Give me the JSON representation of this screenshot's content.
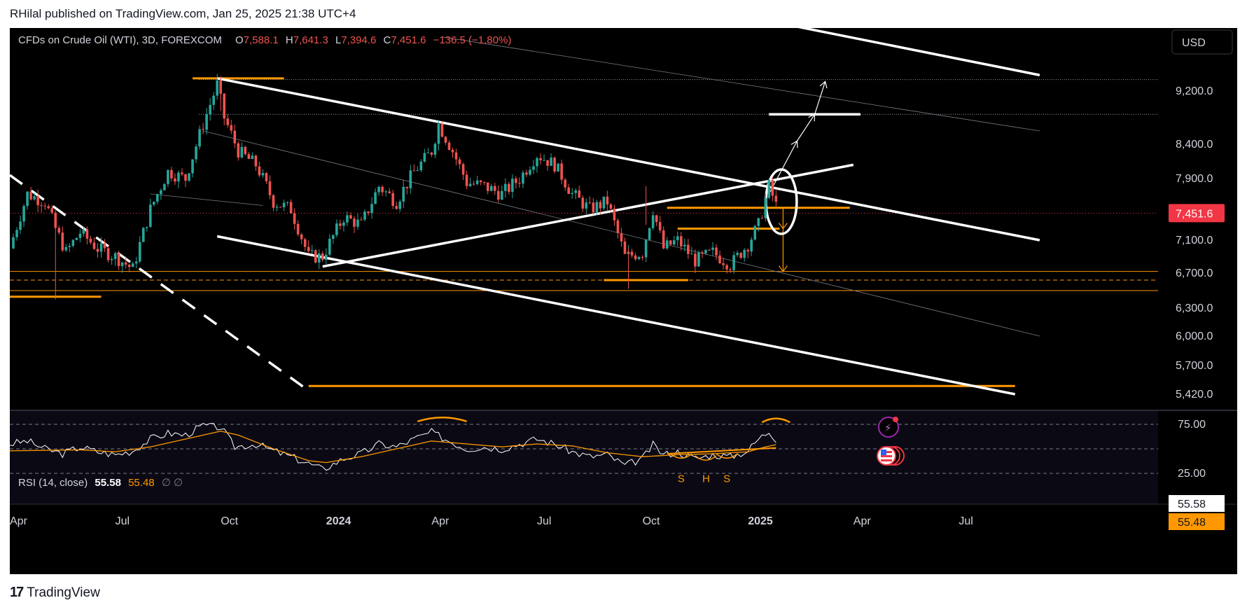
{
  "header": {
    "published": "RHilal published on TradingView.com, Jan 25, 2025 21:38 UTC+4"
  },
  "footer": {
    "brand": "TradingView",
    "logo": "TV-logo-icon"
  },
  "colors": {
    "bg": "#000000",
    "up": "#26a69a",
    "down": "#ef5350",
    "orange": "#ff9800",
    "white": "#ffffff",
    "axis": "#d1d4dc",
    "price_tag": "#f23645",
    "rsi_ma": "#ff9800"
  },
  "chart_data": {
    "type": "candlestick",
    "title": "CFDs on Crude Oil (WTI), 3D, FOREXCOM",
    "ohlc": {
      "o_label": "O",
      "o": "7,588.1",
      "h_label": "H",
      "h": "7,641.3",
      "l_label": "L",
      "l": "7,394.6",
      "c_label": "C",
      "c": "7,451.6",
      "change": "−136.5 (−1.80%)"
    },
    "currency": "USD",
    "last_price": "7,451.6",
    "y_ticks": [
      {
        "value": 9200,
        "label": "9,200.0"
      },
      {
        "value": 8400,
        "label": "8,400.0"
      },
      {
        "value": 7900,
        "label": "7,900.0"
      },
      {
        "value": 7100,
        "label": "7,100.0"
      },
      {
        "value": 6700,
        "label": "6,700.0"
      },
      {
        "value": 6300,
        "label": "6,300.0"
      },
      {
        "value": 6000,
        "label": "6,000.0"
      },
      {
        "value": 5700,
        "label": "5,700.0"
      },
      {
        "value": 5420,
        "label": "5,420.0"
      }
    ],
    "x_ticks": [
      {
        "month": 0,
        "label": "Apr",
        "bold": false
      },
      {
        "month": 3,
        "label": "Jul",
        "bold": false
      },
      {
        "month": 6,
        "label": "Oct",
        "bold": false
      },
      {
        "month": 9,
        "label": "2024",
        "bold": true
      },
      {
        "month": 12,
        "label": "Apr",
        "bold": false
      },
      {
        "month": 15,
        "label": "Jul",
        "bold": false
      },
      {
        "month": 18,
        "label": "Oct",
        "bold": false
      },
      {
        "month": 21,
        "label": "2025",
        "bold": true
      },
      {
        "month": 24,
        "label": "Apr",
        "bold": false
      },
      {
        "month": 27,
        "label": "Jul",
        "bold": false
      }
    ],
    "price_path": [
      {
        "m": 0.0,
        "p": 7000
      },
      {
        "m": 0.5,
        "p": 7700
      },
      {
        "m": 1.0,
        "p": 7600
      },
      {
        "m": 1.3,
        "p": 7250
      },
      {
        "m": 1.6,
        "p": 6950
      },
      {
        "m": 2.0,
        "p": 7200
      },
      {
        "m": 2.5,
        "p": 7000
      },
      {
        "m": 3.0,
        "p": 6900
      },
      {
        "m": 3.5,
        "p": 6750
      },
      {
        "m": 4.0,
        "p": 7500
      },
      {
        "m": 4.5,
        "p": 8000
      },
      {
        "m": 5.0,
        "p": 7900
      },
      {
        "m": 5.5,
        "p": 8700
      },
      {
        "m": 5.9,
        "p": 9300
      },
      {
        "m": 6.1,
        "p": 8800
      },
      {
        "m": 6.5,
        "p": 8300
      },
      {
        "m": 7.0,
        "p": 8100
      },
      {
        "m": 7.5,
        "p": 7600
      },
      {
        "m": 8.0,
        "p": 7500
      },
      {
        "m": 8.5,
        "p": 6900
      },
      {
        "m": 8.9,
        "p": 6900
      },
      {
        "m": 9.5,
        "p": 7400
      },
      {
        "m": 10.0,
        "p": 7300
      },
      {
        "m": 10.5,
        "p": 7800
      },
      {
        "m": 11.0,
        "p": 7600
      },
      {
        "m": 11.5,
        "p": 8000
      },
      {
        "m": 12.0,
        "p": 8300
      },
      {
        "m": 12.2,
        "p": 8700
      },
      {
        "m": 12.6,
        "p": 8300
      },
      {
        "m": 13.0,
        "p": 7850
      },
      {
        "m": 13.5,
        "p": 7800
      },
      {
        "m": 14.0,
        "p": 7700
      },
      {
        "m": 14.5,
        "p": 7900
      },
      {
        "m": 15.0,
        "p": 8250
      },
      {
        "m": 15.5,
        "p": 8100
      },
      {
        "m": 16.0,
        "p": 7700
      },
      {
        "m": 16.5,
        "p": 7500
      },
      {
        "m": 17.0,
        "p": 7600
      },
      {
        "m": 17.5,
        "p": 6900
      },
      {
        "m": 18.0,
        "p": 6950
      },
      {
        "m": 18.3,
        "p": 7500
      },
      {
        "m": 18.6,
        "p": 7000
      },
      {
        "m": 19.0,
        "p": 7100
      },
      {
        "m": 19.5,
        "p": 6850
      },
      {
        "m": 20.0,
        "p": 6950
      },
      {
        "m": 20.5,
        "p": 6800
      },
      {
        "m": 21.0,
        "p": 7050
      },
      {
        "m": 21.3,
        "p": 7300
      },
      {
        "m": 21.6,
        "p": 7800
      },
      {
        "m": 21.8,
        "p": 7550
      },
      {
        "m": 21.9,
        "p": 7450
      }
    ],
    "rsi": {
      "label": "RSI (14, close)",
      "value": "55.58",
      "ma_value": "55.48",
      "extra": "∅ ∅",
      "levels": [
        75,
        50,
        25
      ],
      "level_labels": [
        "75.00",
        "25.00"
      ],
      "pattern_labels": [
        "S",
        "H",
        "S"
      ],
      "path": [
        {
          "m": 0.0,
          "v": 55
        },
        {
          "m": 0.5,
          "v": 58
        },
        {
          "m": 1.0,
          "v": 50
        },
        {
          "m": 1.5,
          "v": 45
        },
        {
          "m": 2.0,
          "v": 52
        },
        {
          "m": 2.5,
          "v": 47
        },
        {
          "m": 3.0,
          "v": 44
        },
        {
          "m": 3.5,
          "v": 48
        },
        {
          "m": 4.0,
          "v": 60
        },
        {
          "m": 4.5,
          "v": 66
        },
        {
          "m": 5.0,
          "v": 64
        },
        {
          "m": 5.5,
          "v": 74
        },
        {
          "m": 6.0,
          "v": 72
        },
        {
          "m": 6.4,
          "v": 52
        },
        {
          "m": 7.0,
          "v": 55
        },
        {
          "m": 7.5,
          "v": 48
        },
        {
          "m": 8.0,
          "v": 42
        },
        {
          "m": 8.5,
          "v": 35
        },
        {
          "m": 8.9,
          "v": 29
        },
        {
          "m": 9.5,
          "v": 40
        },
        {
          "m": 10.0,
          "v": 45
        },
        {
          "m": 10.5,
          "v": 55
        },
        {
          "m": 11.0,
          "v": 52
        },
        {
          "m": 11.5,
          "v": 60
        },
        {
          "m": 12.0,
          "v": 67
        },
        {
          "m": 12.5,
          "v": 58
        },
        {
          "m": 13.0,
          "v": 50
        },
        {
          "m": 13.5,
          "v": 52
        },
        {
          "m": 14.0,
          "v": 50
        },
        {
          "m": 14.5,
          "v": 55
        },
        {
          "m": 15.0,
          "v": 60
        },
        {
          "m": 15.5,
          "v": 55
        },
        {
          "m": 16.0,
          "v": 47
        },
        {
          "m": 16.5,
          "v": 42
        },
        {
          "m": 17.0,
          "v": 44
        },
        {
          "m": 17.5,
          "v": 33
        },
        {
          "m": 18.0,
          "v": 40
        },
        {
          "m": 18.3,
          "v": 54
        },
        {
          "m": 18.6,
          "v": 44
        },
        {
          "m": 19.0,
          "v": 47
        },
        {
          "m": 19.5,
          "v": 40
        },
        {
          "m": 20.0,
          "v": 44
        },
        {
          "m": 20.5,
          "v": 42
        },
        {
          "m": 21.0,
          "v": 48
        },
        {
          "m": 21.3,
          "v": 60
        },
        {
          "m": 21.6,
          "v": 68
        },
        {
          "m": 21.9,
          "v": 56
        }
      ],
      "ma_path": [
        {
          "m": 0.0,
          "v": 48
        },
        {
          "m": 2.0,
          "v": 49
        },
        {
          "m": 3.0,
          "v": 47
        },
        {
          "m": 4.0,
          "v": 52
        },
        {
          "m": 5.0,
          "v": 60
        },
        {
          "m": 6.0,
          "v": 68
        },
        {
          "m": 6.5,
          "v": 64
        },
        {
          "m": 7.5,
          "v": 50
        },
        {
          "m": 8.5,
          "v": 38
        },
        {
          "m": 9.0,
          "v": 36
        },
        {
          "m": 10.0,
          "v": 42
        },
        {
          "m": 11.0,
          "v": 50
        },
        {
          "m": 12.0,
          "v": 58
        },
        {
          "m": 13.0,
          "v": 55
        },
        {
          "m": 14.0,
          "v": 52
        },
        {
          "m": 15.0,
          "v": 55
        },
        {
          "m": 16.0,
          "v": 53
        },
        {
          "m": 17.0,
          "v": 46
        },
        {
          "m": 18.0,
          "v": 42
        },
        {
          "m": 19.0,
          "v": 44
        },
        {
          "m": 20.0,
          "v": 45
        },
        {
          "m": 21.0,
          "v": 47
        },
        {
          "m": 21.5,
          "v": 52
        },
        {
          "m": 21.9,
          "v": 55
        }
      ]
    },
    "trendlines": [
      {
        "name": "channel-upper",
        "from": [
          5.9,
          9400
        ],
        "to": [
          29.3,
          7100
        ]
      },
      {
        "name": "channel-lower",
        "from": [
          5.9,
          7150
        ],
        "to": [
          28.6,
          5420
        ]
      },
      {
        "name": "outer-upper",
        "from": [
          21.6,
          10300
        ],
        "to": [
          29.3,
          9450
        ]
      },
      {
        "name": "rising-support",
        "from": [
          8.9,
          6780
        ],
        "to": [
          24.0,
          8100
        ]
      },
      {
        "name": "dashed-support",
        "from": [
          0.0,
          7950
        ],
        "to": [
          8.4,
          5480
        ]
      }
    ],
    "orange_levels": [
      {
        "from": 5.2,
        "to": 7.8,
        "p": 9400
      },
      {
        "from": 0.0,
        "to": 2.6,
        "p": 6430
      },
      {
        "from": 16.9,
        "to": 19.3,
        "p": 6620
      },
      {
        "from": 18.7,
        "to": 23.9,
        "p": 7520
      },
      {
        "from": 19.0,
        "to": 21.9,
        "p": 7250
      },
      {
        "from": 8.5,
        "to": 28.6,
        "p": 5500
      }
    ],
    "long_levels": [
      {
        "p": 6720,
        "style": "solid"
      },
      {
        "p": 6620,
        "style": "dashed"
      },
      {
        "p": 6500,
        "style": "solid"
      }
    ],
    "white_levels": [
      {
        "from": 21.6,
        "to": 24.2,
        "p": 8850
      }
    ],
    "targets": [
      {
        "from": [
          21.6,
          7700
        ],
        "to": [
          22.4,
          8450
        ]
      },
      {
        "from": [
          22.4,
          8450
        ],
        "to": [
          22.9,
          8850
        ]
      },
      {
        "from": [
          22.9,
          8850
        ],
        "to": [
          23.2,
          9350
        ]
      }
    ],
    "down_arrows": [
      {
        "m": 22.0,
        "from": 7520,
        "to": 7250
      },
      {
        "m": 22.0,
        "from": 7250,
        "to": 6720
      }
    ],
    "highlight": {
      "m": 21.95,
      "p": 7600
    }
  }
}
